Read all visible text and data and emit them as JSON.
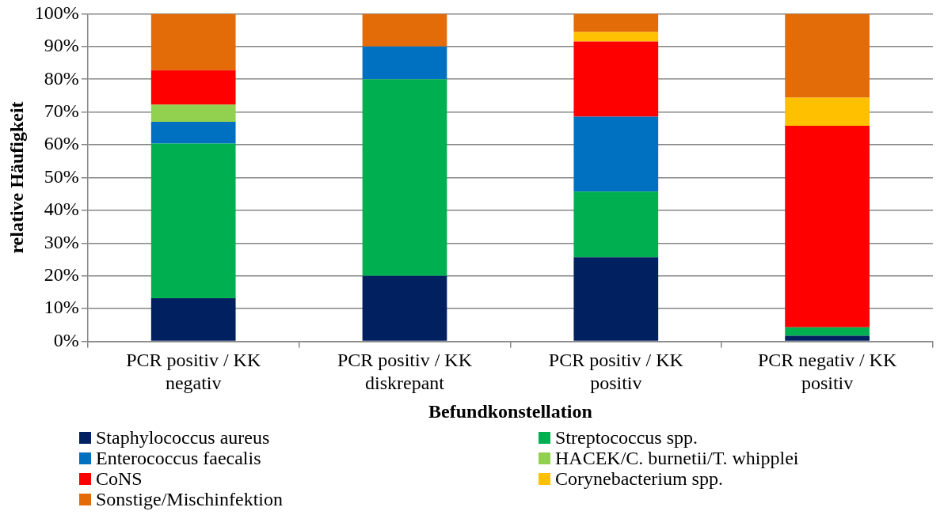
{
  "chart_data": {
    "type": "bar",
    "stacked": true,
    "xlabel": "Befundkonstellation",
    "ylabel": "relative Häufigkeit",
    "categories": [
      "PCR positiv / KK negativ",
      "PCR positiv / KK diskrepant",
      "PCR positiv / KK positiv",
      "PCR negativ / KK positiv"
    ],
    "ylim": [
      0,
      100
    ],
    "yticks": [
      {
        "value": 0,
        "label": "0%"
      },
      {
        "value": 10,
        "label": "10%"
      },
      {
        "value": 20,
        "label": "20%"
      },
      {
        "value": 30,
        "label": "30%"
      },
      {
        "value": 40,
        "label": "40%"
      },
      {
        "value": 50,
        "label": "50%"
      },
      {
        "value": 60,
        "label": "60%"
      },
      {
        "value": 70,
        "label": "70%"
      },
      {
        "value": 80,
        "label": "80%"
      },
      {
        "value": 90,
        "label": "90%"
      },
      {
        "value": 100,
        "label": "100%"
      }
    ],
    "grid": "y",
    "legend": "bottom",
    "series": [
      {
        "name": "Staphylococcus aureus",
        "color": "#002060",
        "values": [
          13.2,
          20,
          25.7,
          1.7
        ]
      },
      {
        "name": "Streptococcus spp.",
        "color": "#00b050",
        "values": [
          47.2,
          60,
          20,
          2.6
        ]
      },
      {
        "name": "Enterococcus faecalis",
        "color": "#0070c0",
        "values": [
          6.6,
          10,
          22.9,
          0
        ]
      },
      {
        "name": "HACEK/C. burnetii/T. whipplei",
        "color": "#92d050",
        "values": [
          5.3,
          0,
          0,
          0
        ]
      },
      {
        "name": "CoNS",
        "color": "#ff0000",
        "values": [
          10.5,
          0,
          22.9,
          61.5
        ]
      },
      {
        "name": "Corynebacterium spp.",
        "color": "#ffc000",
        "values": [
          0,
          0,
          2.9,
          8.6
        ]
      },
      {
        "name": "Sonstige/Mischinfektion",
        "color": "#e36c09",
        "values": [
          17.2,
          10,
          5.7,
          25.6
        ]
      }
    ]
  }
}
